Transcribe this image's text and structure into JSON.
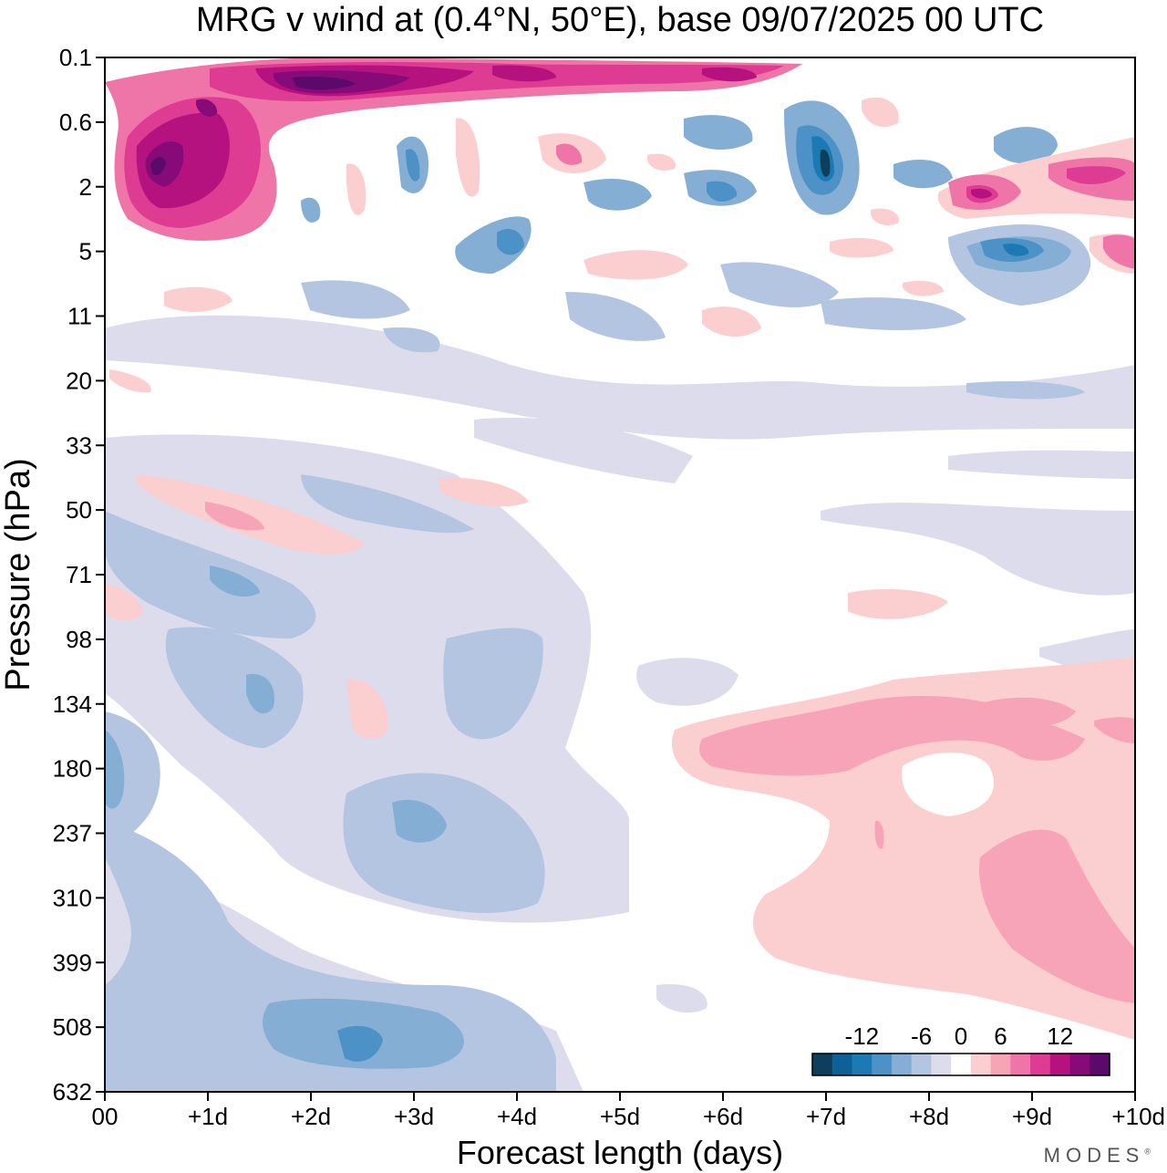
{
  "title": "MRG v wind at (0.4°N, 50°E),  base 09/07/2025  00 UTC",
  "watermark": "MODES",
  "chart_data": {
    "type": "heatmap",
    "title": "MRG v wind at (0.4°N, 50°E),  base 09/07/2025  00 UTC",
    "xlabel": "Forecast length (days)",
    "ylabel": "Pressure (hPa)",
    "x_ticks": [
      "00",
      "+1d",
      "+2d",
      "+3d",
      "+4d",
      "+5d",
      "+6d",
      "+7d",
      "+8d",
      "+9d",
      "+10d"
    ],
    "y_ticks": [
      "0.1",
      "0.6",
      "2",
      "5",
      "11",
      "20",
      "33",
      "50",
      "71",
      "98",
      "134",
      "180",
      "237",
      "310",
      "399",
      "508",
      "632"
    ],
    "xlim": [
      0,
      10
    ],
    "ylim": [
      0.1,
      632
    ],
    "colorbar": {
      "tick_labels": [
        "-12",
        "-6",
        "0",
        "6",
        "12"
      ],
      "levels": [
        -16,
        -14,
        -12,
        -10,
        -8,
        -6,
        -4,
        -2,
        2,
        4,
        6,
        8,
        10,
        12,
        14,
        16
      ],
      "colors": [
        "#0d3e5b",
        "#0e6196",
        "#1b7ab3",
        "#4c92c6",
        "#85aed4",
        "#b3c5e0",
        "#dcdcec",
        "#ffffff",
        "#fbcfd0",
        "#f7a3b8",
        "#ef74a8",
        "#de3b92",
        "#b5127f",
        "#860b78",
        "#5b0a6b"
      ]
    },
    "regions": [
      {
        "type": "pos",
        "level": 2,
        "x": [
          0,
          1
        ],
        "y": [
          0.1,
          0.5
        ],
        "note": "strong positive band at top"
      },
      {
        "type": "pos",
        "level": 5,
        "x": [
          0.4,
          1.6
        ],
        "y": [
          0.6,
          4
        ],
        "max": 14
      },
      {
        "type": "pos",
        "level": 4,
        "x": [
          1.8,
          3.5
        ],
        "y": [
          0.1,
          0.4
        ],
        "max": 16
      },
      {
        "type": "neg",
        "level": -12,
        "x": [
          6.7,
          7.2
        ],
        "y": [
          0.6,
          3
        ]
      },
      {
        "type": "neg",
        "level": -10,
        "x": [
          8.5,
          9.5
        ],
        "y": [
          3,
          7
        ]
      },
      {
        "type": "pos",
        "level": 10,
        "x": [
          8.3,
          8.8
        ],
        "y": [
          2,
          3
        ]
      },
      {
        "type": "neg",
        "level": -6,
        "x": [
          1.5,
          3.5
        ],
        "y": [
          300,
          632
        ]
      },
      {
        "type": "neg",
        "level": -4,
        "x": [
          0,
          0.2
        ],
        "y": [
          160,
          200
        ]
      },
      {
        "type": "pos",
        "level": 4,
        "x": [
          6.5,
          10
        ],
        "y": [
          130,
          500
        ]
      }
    ]
  }
}
